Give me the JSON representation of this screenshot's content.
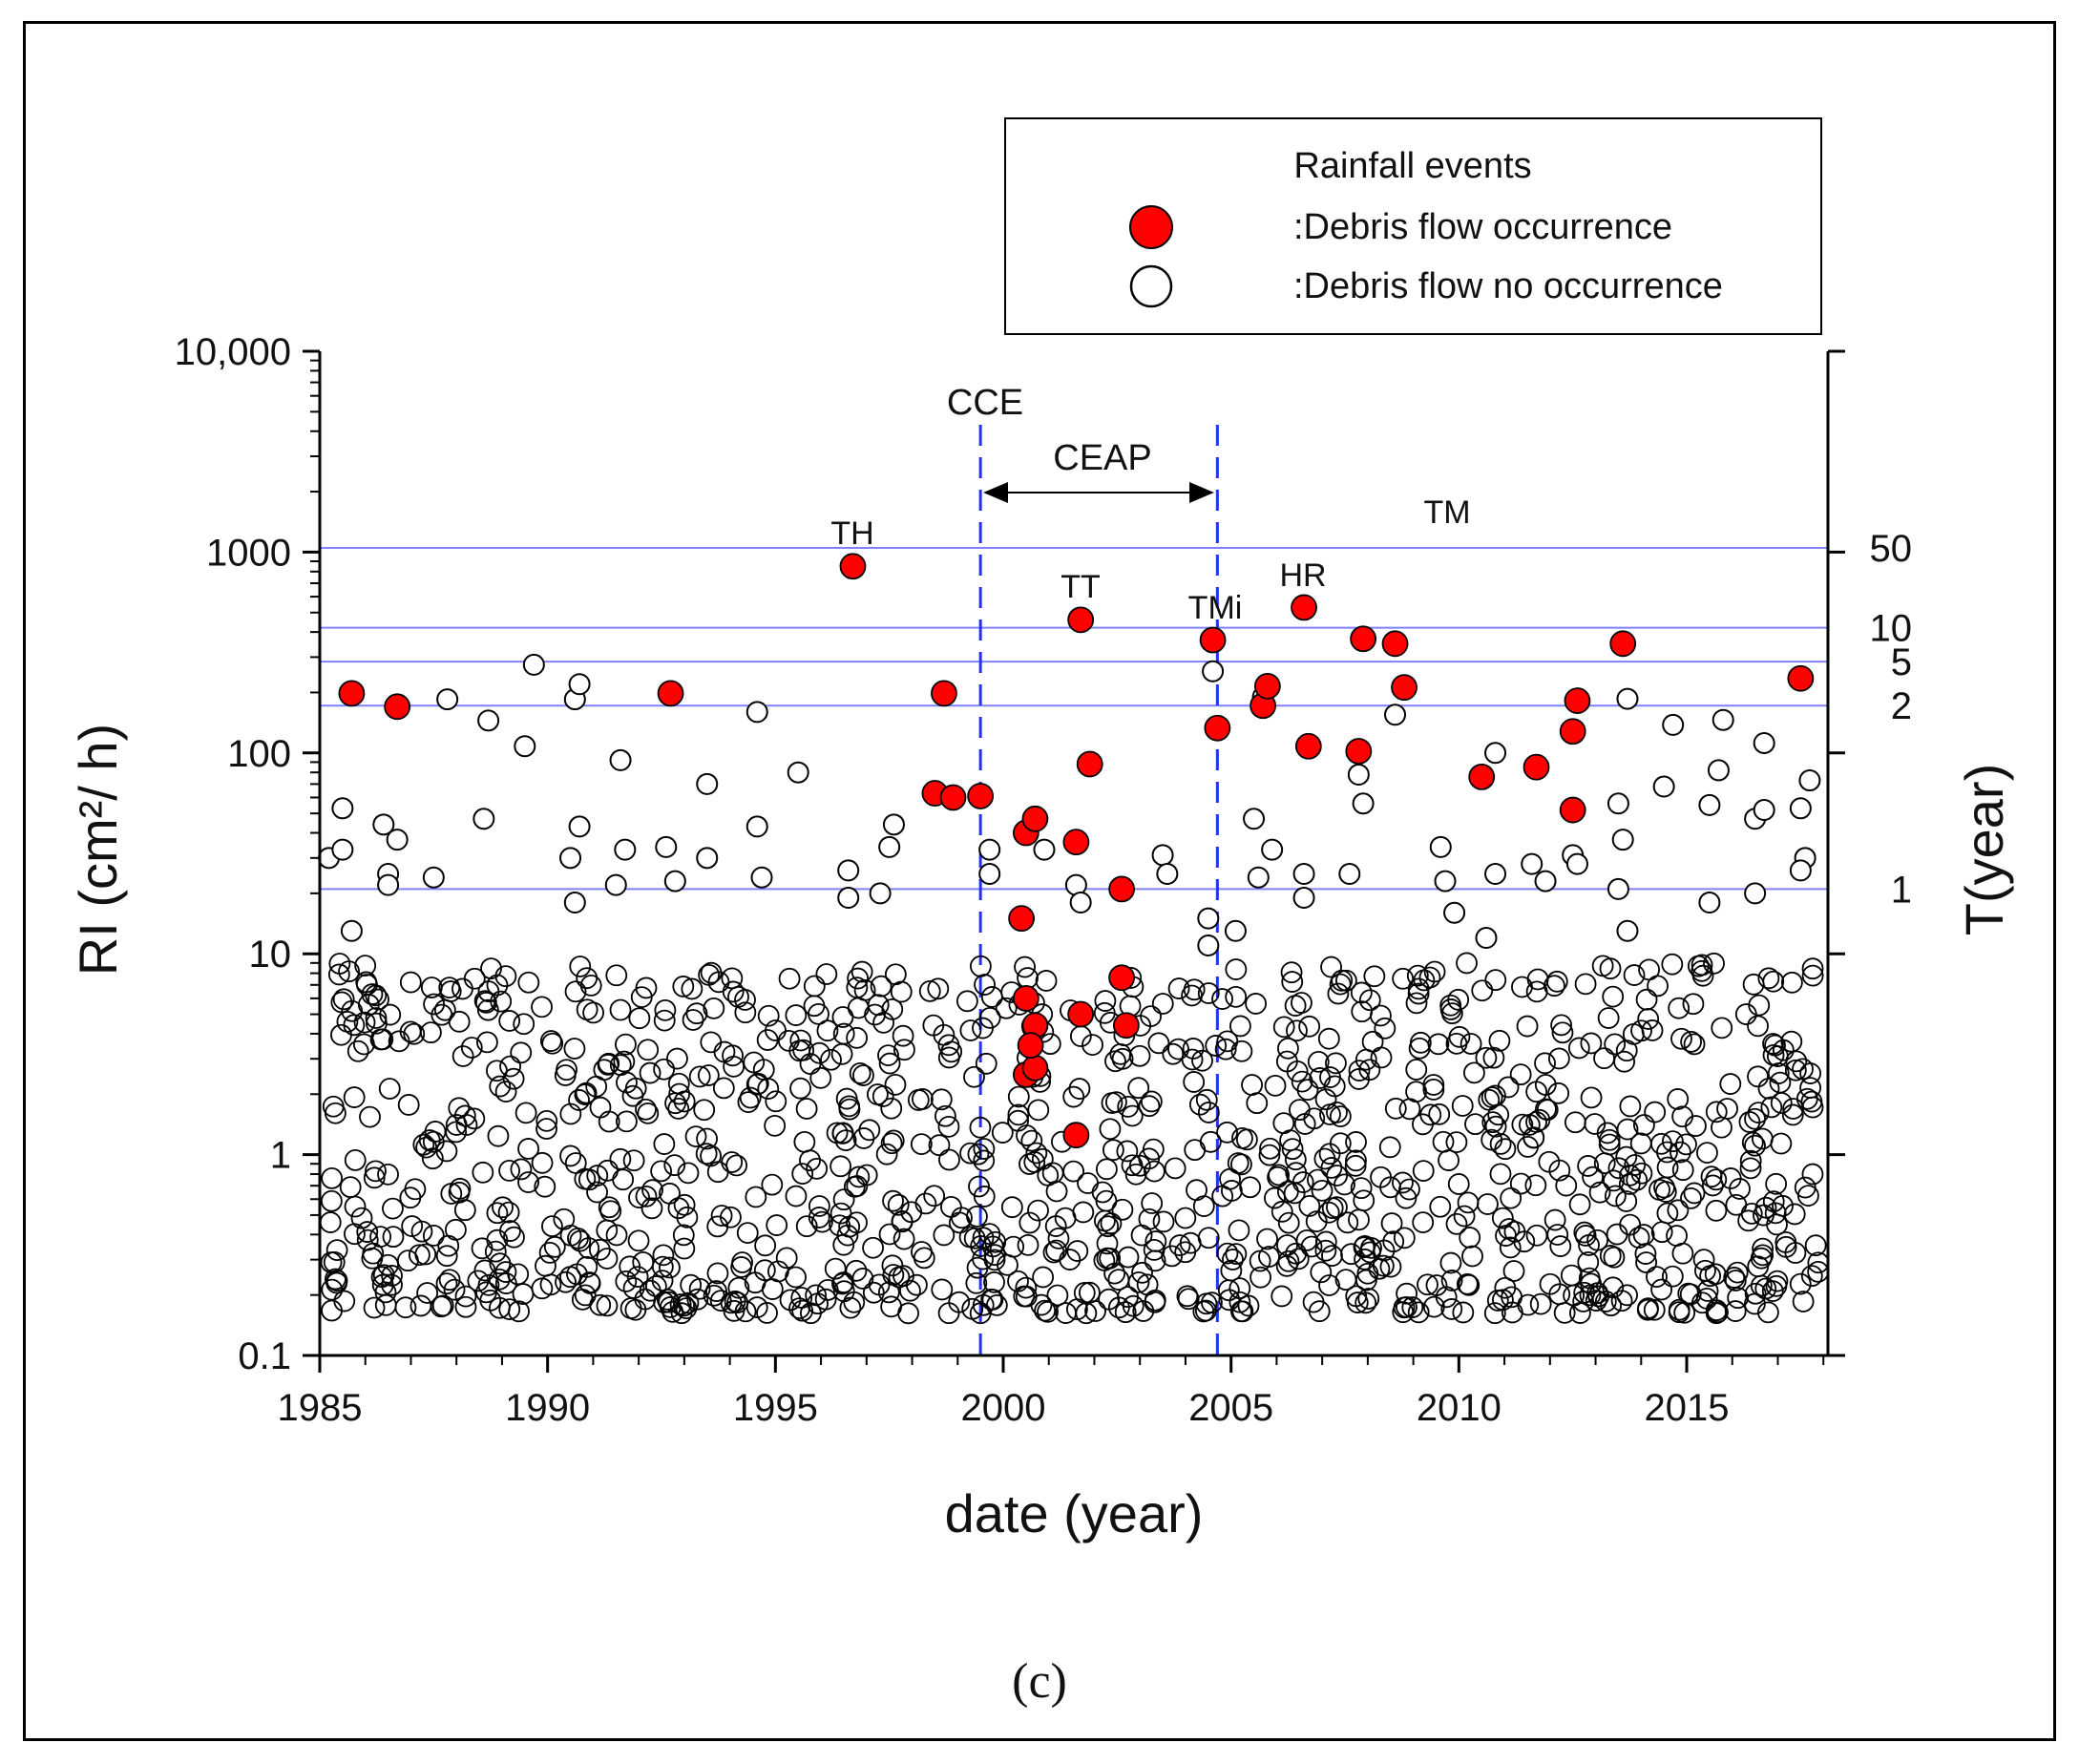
{
  "chart_data": {
    "type": "scatter",
    "title": "",
    "xlabel": "date (year)",
    "ylabel": "RI (cm²/ h)",
    "ylabel_right": "T(year)",
    "caption": "(c)",
    "xlim": [
      1985,
      2018.1
    ],
    "ylim": [
      0.1,
      10000
    ],
    "yscale": "log",
    "grid": false,
    "x_ticks": [
      "1985",
      "1990",
      "1995",
      "2000",
      "2005",
      "2010",
      "2015"
    ],
    "y_ticks": [
      "0.1",
      "1",
      "10",
      "100",
      "1000",
      "10,000"
    ],
    "legend": {
      "title": "Rainfall events",
      "position": "top-right",
      "entries": [
        {
          "label": ":Debris flow occurrence",
          "marker": "filled-circle",
          "color": "#ff0000"
        },
        {
          "label": ":Debris flow no occurrence",
          "marker": "open-circle",
          "color": "#000000"
        }
      ]
    },
    "return_period_lines": [
      {
        "label": "50",
        "value": 1050
      },
      {
        "label": "10",
        "value": 420
      },
      {
        "label": "5",
        "value": 285
      },
      {
        "label": "2",
        "value": 172
      },
      {
        "label": "1",
        "value": 21
      }
    ],
    "vertical_markers": [
      {
        "label": "CCE",
        "x": 1999.5
      },
      {
        "label": "",
        "x": 2004.7
      }
    ],
    "period_annotation": {
      "label": "CEAP",
      "from": 1999.5,
      "to": 2004.7
    },
    "event_labels": [
      {
        "label": "TH",
        "x": 1996.7,
        "y": 850
      },
      {
        "label": "TT",
        "x": 2001.7,
        "y": 460
      },
      {
        "label": "TMi",
        "x": 2004.6,
        "y": 365
      },
      {
        "label": "HR",
        "x": 2006.6,
        "y": 530
      },
      {
        "label": "TM",
        "x": 2009.7,
        "y": 1080
      }
    ],
    "series": [
      {
        "name": ":Debris flow occurrence",
        "color": "#ff0000",
        "points": [
          [
            1985.7,
            198
          ],
          [
            1986.7,
            170
          ],
          [
            1992.7,
            198
          ],
          [
            1996.7,
            850
          ],
          [
            1998.5,
            63
          ],
          [
            1998.7,
            198
          ],
          [
            1998.9,
            60
          ],
          [
            1999.5,
            61
          ],
          [
            2000.4,
            15
          ],
          [
            2000.5,
            40
          ],
          [
            2000.7,
            47
          ],
          [
            2000.5,
            6.0
          ],
          [
            2000.7,
            4.4
          ],
          [
            2000.5,
            2.5
          ],
          [
            2000.7,
            2.7
          ],
          [
            2000.6,
            3.5
          ],
          [
            2001.6,
            36
          ],
          [
            2001.7,
            460
          ],
          [
            2001.9,
            88
          ],
          [
            2001.6,
            1.25
          ],
          [
            2001.7,
            5.0
          ],
          [
            2002.6,
            21
          ],
          [
            2002.6,
            7.6
          ],
          [
            2002.7,
            4.4
          ],
          [
            2004.6,
            365
          ],
          [
            2004.7,
            133
          ],
          [
            2005.7,
            172
          ],
          [
            2005.8,
            215
          ],
          [
            2006.6,
            530
          ],
          [
            2006.7,
            108
          ],
          [
            2007.8,
            102
          ],
          [
            2007.9,
            370
          ],
          [
            2008.6,
            350
          ],
          [
            2008.8,
            212
          ],
          [
            2010.5,
            76
          ],
          [
            2011.7,
            85
          ],
          [
            2012.5,
            128
          ],
          [
            2012.5,
            52
          ],
          [
            2012.6,
            182
          ],
          [
            2013.6,
            350
          ],
          [
            2017.5,
            235
          ]
        ]
      },
      {
        "name": ":Debris flow no occurrence",
        "color": "#000000",
        "points": [
          [
            1985.2,
            30
          ],
          [
            1985.5,
            53
          ],
          [
            1985.5,
            33
          ],
          [
            1985.7,
            13
          ],
          [
            1986.4,
            44
          ],
          [
            1986.5,
            25
          ],
          [
            1986.5,
            22
          ],
          [
            1986.7,
            37
          ],
          [
            1987.5,
            24
          ],
          [
            1987.8,
            185
          ],
          [
            1988.6,
            47
          ],
          [
            1988.7,
            145
          ],
          [
            1989.5,
            108
          ],
          [
            1989.7,
            275
          ],
          [
            1990.6,
            185
          ],
          [
            1990.7,
            220
          ],
          [
            1990.7,
            43
          ],
          [
            1990.5,
            30
          ],
          [
            1990.6,
            18
          ],
          [
            1991.6,
            92
          ],
          [
            1991.7,
            33
          ],
          [
            1991.5,
            22
          ],
          [
            1992.6,
            34
          ],
          [
            1992.8,
            23
          ],
          [
            1993.5,
            70
          ],
          [
            1993.5,
            30
          ],
          [
            1994.6,
            160
          ],
          [
            1994.6,
            43
          ],
          [
            1994.7,
            24
          ],
          [
            1995.5,
            80
          ],
          [
            1996.6,
            26
          ],
          [
            1996.6,
            19
          ],
          [
            1997.5,
            34
          ],
          [
            1997.6,
            44
          ],
          [
            1997.3,
            20
          ],
          [
            1999.7,
            33
          ],
          [
            1999.7,
            25
          ],
          [
            2000.9,
            33
          ],
          [
            2001.6,
            22
          ],
          [
            2001.7,
            18
          ],
          [
            2003.5,
            31
          ],
          [
            2003.6,
            25
          ],
          [
            2004.6,
            255
          ],
          [
            2004.5,
            15
          ],
          [
            2004.5,
            11
          ],
          [
            2005.1,
            13
          ],
          [
            2005.5,
            47
          ],
          [
            2005.7,
            190
          ],
          [
            2005.6,
            24
          ],
          [
            2005.9,
            33
          ],
          [
            2006.6,
            25
          ],
          [
            2006.6,
            19
          ],
          [
            2007.6,
            25
          ],
          [
            2007.8,
            78
          ],
          [
            2007.9,
            56
          ],
          [
            2008.6,
            155
          ],
          [
            2009.6,
            34
          ],
          [
            2009.7,
            23
          ],
          [
            2009.9,
            16
          ],
          [
            2010.6,
            12
          ],
          [
            2010.8,
            25
          ],
          [
            2010.8,
            100
          ],
          [
            2011.6,
            28
          ],
          [
            2011.9,
            23
          ],
          [
            2012.5,
            31
          ],
          [
            2012.6,
            28
          ],
          [
            2013.5,
            56
          ],
          [
            2013.6,
            37
          ],
          [
            2013.5,
            21
          ],
          [
            2013.7,
            13
          ],
          [
            2013.7,
            186
          ],
          [
            2014.5,
            68
          ],
          [
            2014.7,
            138
          ],
          [
            2015.5,
            55
          ],
          [
            2015.7,
            82
          ],
          [
            2015.8,
            146
          ],
          [
            2015.5,
            18
          ],
          [
            2016.5,
            47
          ],
          [
            2016.7,
            52
          ],
          [
            2016.7,
            112
          ],
          [
            2016.5,
            20
          ],
          [
            2017.5,
            53
          ],
          [
            2017.6,
            30
          ],
          [
            2017.7,
            73
          ],
          [
            2017.5,
            26
          ]
        ]
      }
    ]
  }
}
